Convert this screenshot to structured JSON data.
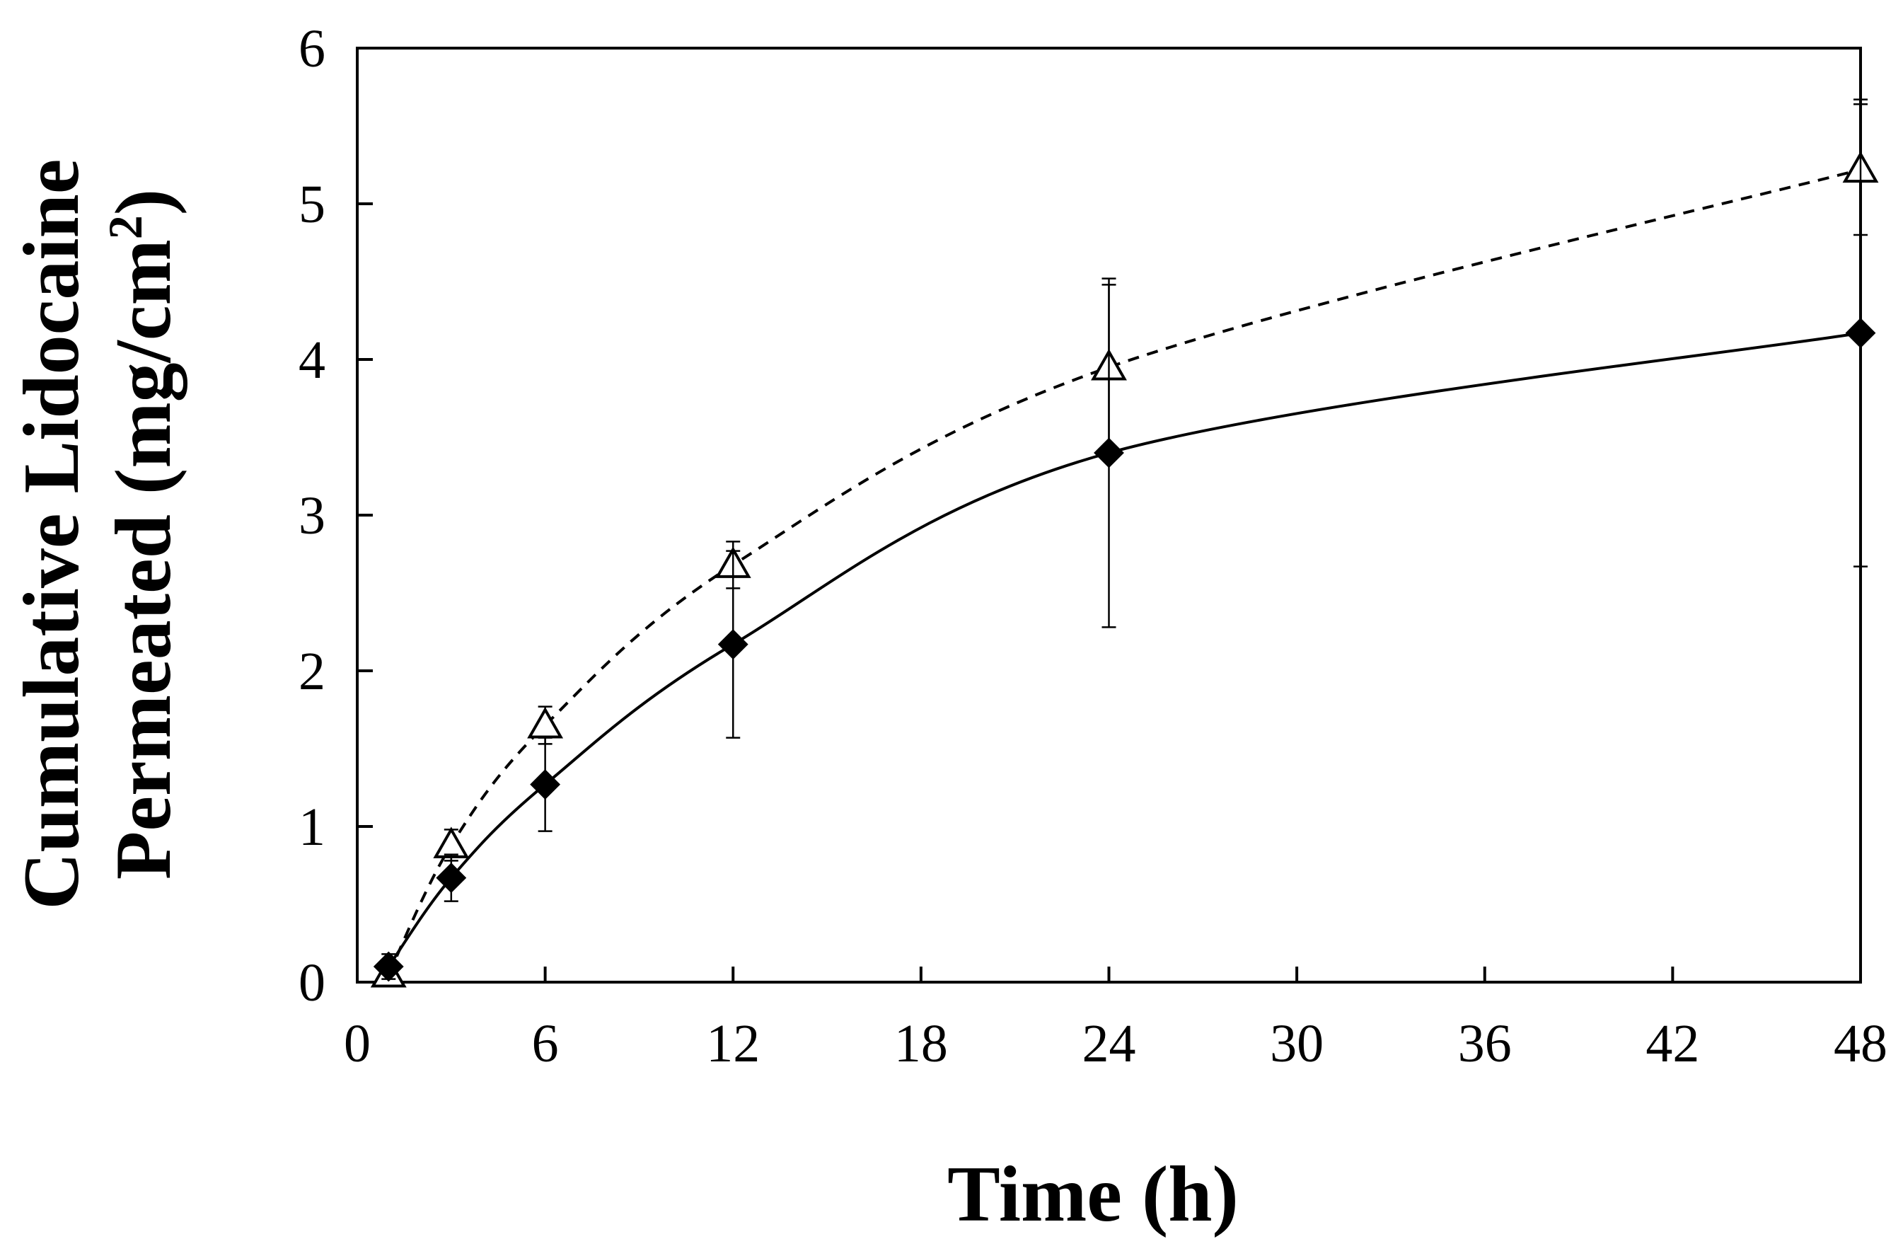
{
  "chart_data": {
    "type": "line",
    "title": "",
    "xlabel": "Time (h)",
    "ylabel_line1": "Cumulative  Lidocaine",
    "ylabel_line2_prefix": "Permeated (mg/cm",
    "ylabel_line2_sup": "2",
    "ylabel_line2_suffix": ")",
    "xlim": [
      0,
      48
    ],
    "ylim": [
      0,
      6
    ],
    "xticks": [
      0,
      6,
      12,
      18,
      24,
      30,
      36,
      42,
      48
    ],
    "yticks": [
      0,
      1,
      2,
      3,
      4,
      5,
      6
    ],
    "grid": false,
    "series": [
      {
        "name": "triangle (dashed)",
        "marker": "open-triangle",
        "line": "dashed",
        "color": "#000000",
        "x": [
          1,
          3,
          6,
          12,
          24,
          48
        ],
        "y": [
          0.05,
          0.88,
          1.65,
          2.68,
          3.95,
          5.22
        ],
        "err": [
          0.04,
          0.1,
          0.12,
          0.15,
          0.53,
          0.42
        ]
      },
      {
        "name": "diamond (solid)",
        "marker": "filled-diamond",
        "line": "solid",
        "color": "#000000",
        "x": [
          1,
          3,
          6,
          12,
          24,
          48
        ],
        "y": [
          0.1,
          0.67,
          1.27,
          2.17,
          3.4,
          4.17
        ],
        "err": [
          0.08,
          0.15,
          0.3,
          0.6,
          1.12,
          1.5
        ]
      }
    ]
  }
}
